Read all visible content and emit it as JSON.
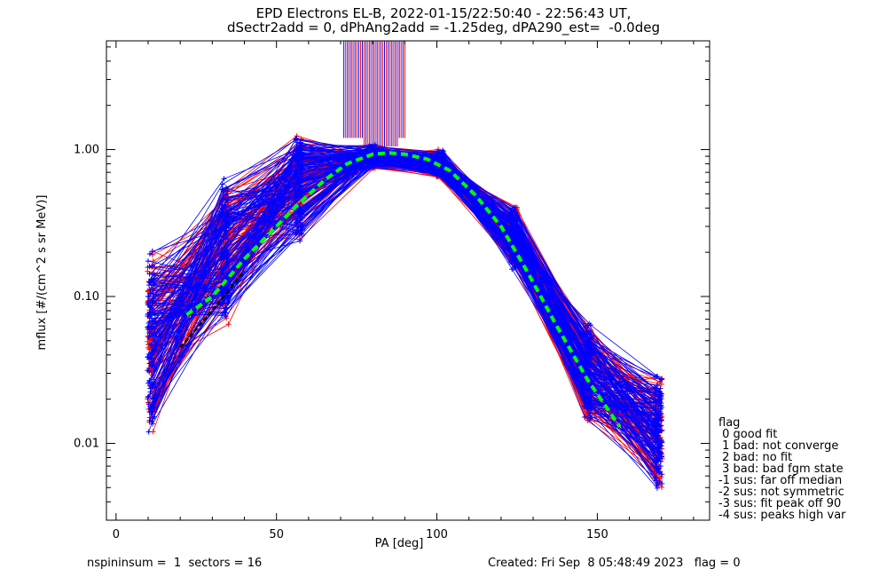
{
  "title_line1": "EPD Electrons EL-B, 2022-01-15/22:50:40 - 22:56:43 UT,",
  "title_line2": "dSectr2add = 0, dPhAng2add = -1.25deg, dPA290_est=  -0.0deg",
  "footer_left": "nspininsum =  1  sectors = 16",
  "footer_right": "Created: Fri Sep  8 05:48:49 2023   flag = 0",
  "legend": {
    "title": "flag",
    "items": [
      " 0 good fit",
      " 1 bad: not converge",
      " 2 bad: no fit",
      " 3 bad: bad fgm state",
      "-1 sus: far off median",
      "-2 sus: not symmetric",
      "-3 sus: fit peak off 90",
      "-4 sus: peaks high var"
    ]
  },
  "colors": {
    "red": "#ff0000",
    "blue": "#0000ff",
    "green": "#00ff00",
    "black": "#000000"
  },
  "chart_data": {
    "type": "line",
    "title": "EPD Electrons EL-B, 2022-01-15/22:50:40 - 22:56:43 UT,",
    "subtitle": "dSectr2add = 0, dPhAng2add = -1.25deg, dPA290_est=  -0.0deg",
    "xlabel": "PA [deg]",
    "ylabel": "mflux [#/(cm^2 s sr MeV)]",
    "xlim": [
      -3,
      185
    ],
    "ylim": [
      0.003,
      5.5
    ],
    "yscale": "log",
    "xticks": [
      0,
      50,
      100,
      150
    ],
    "xtick_labels": [
      "0",
      "50",
      "100",
      "150"
    ],
    "yticks": [
      0.01,
      0.1,
      1.0
    ],
    "ytick_labels": [
      "0.01",
      "0.10",
      "1.00"
    ],
    "pa_bins": [
      11,
      34,
      57,
      80,
      101,
      124,
      147,
      169
    ],
    "representative_profile": [
      0.05,
      0.2,
      0.55,
      0.9,
      0.8,
      0.25,
      0.03,
      0.012
    ],
    "spread_factor": [
      4.0,
      3.0,
      2.2,
      1.2,
      1.25,
      1.6,
      2.2,
      2.4
    ],
    "series": [
      {
        "color": "red",
        "count": 110
      },
      {
        "color": "blue",
        "count": 130
      }
    ],
    "fit_curve": {
      "color": "green",
      "style": "dashed",
      "x": [
        22,
        30,
        40,
        50,
        57,
        65,
        72,
        80,
        85,
        90,
        97,
        104,
        112,
        120,
        128,
        137,
        147,
        157
      ],
      "y": [
        0.075,
        0.1,
        0.18,
        0.3,
        0.43,
        0.62,
        0.8,
        0.93,
        0.95,
        0.93,
        0.86,
        0.72,
        0.49,
        0.3,
        0.15,
        0.065,
        0.027,
        0.013
      ]
    },
    "black_dashed_curve": {
      "color": "black",
      "x": [
        20,
        25,
        30,
        35,
        40
      ],
      "y": [
        0.045,
        0.06,
        0.08,
        0.11,
        0.15
      ]
    },
    "off_scale_spikes": {
      "x_range": [
        71,
        90
      ],
      "y_start": 1.2,
      "colors": [
        "blue",
        "red"
      ]
    },
    "grid": false
  }
}
